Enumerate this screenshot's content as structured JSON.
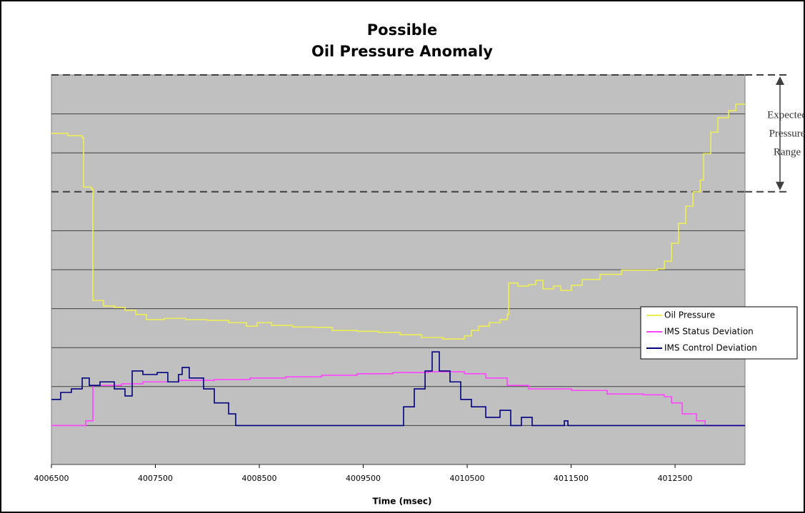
{
  "chart_data": {
    "type": "step",
    "title": [
      "Possible",
      "Oil Pressure Anomaly"
    ],
    "xlabel": "Time (msec)",
    "xlim": [
      4006500,
      4013173
    ],
    "xticks": [
      4006500,
      4007500,
      4008500,
      4009500,
      4010500,
      4011500,
      4012500
    ],
    "ylim": [
      0,
      10
    ],
    "yticks": [
      0,
      1,
      2,
      3,
      4,
      5,
      6,
      7,
      8,
      9,
      10
    ],
    "ytick_labels": false,
    "grid": true,
    "expected_range": [
      7,
      10
    ],
    "annotation": [
      "Expected",
      "Pressure",
      "Range"
    ],
    "legend": "right",
    "series": [
      {
        "name": "Oil Pressure",
        "color": "#eeee55",
        "x": [
          4006500,
          4006658,
          4006796,
          4006809,
          4006885,
          4006899,
          4007002,
          4007105,
          4007208,
          4007311,
          4007414,
          4007586,
          4007792,
          4007998,
          4008205,
          4008376,
          4008479,
          4008617,
          4008823,
          4009029,
          4009201,
          4009442,
          4009648,
          4009854,
          4010060,
          4010266,
          4010473,
          4010541,
          4010610,
          4010713,
          4010816,
          4010885,
          4010899,
          4010988,
          4011091,
          4011160,
          4011229,
          4011332,
          4011400,
          4011503,
          4011607,
          4011778,
          4011985,
          4012191,
          4012328,
          4012397,
          4012466,
          4012534,
          4012603,
          4012672,
          4012741,
          4012775,
          4012844,
          4012912,
          4013015,
          4013084,
          4013173
        ],
        "values": [
          8.5,
          8.44,
          8.39,
          7.12,
          7.07,
          4.21,
          4.07,
          4.03,
          3.96,
          3.85,
          3.72,
          3.75,
          3.72,
          3.7,
          3.64,
          3.55,
          3.64,
          3.57,
          3.53,
          3.52,
          3.44,
          3.42,
          3.39,
          3.33,
          3.26,
          3.22,
          3.3,
          3.44,
          3.55,
          3.64,
          3.72,
          3.85,
          4.66,
          4.58,
          4.62,
          4.73,
          4.51,
          4.58,
          4.47,
          4.6,
          4.75,
          4.88,
          4.99,
          4.99,
          5.02,
          5.22,
          5.68,
          6.19,
          6.63,
          7.0,
          7.3,
          7.98,
          8.53,
          8.9,
          9.08,
          9.25,
          9.25
        ]
      },
      {
        "name": "IMS Status Deviation",
        "color": "#ff44ff",
        "x": [
          4006500,
          4006796,
          4006830,
          4006899,
          4007036,
          4007174,
          4007380,
          4007723,
          4008067,
          4008411,
          4008754,
          4009098,
          4009442,
          4009785,
          4010129,
          4010473,
          4010679,
          4010885,
          4011091,
          4011366,
          4011503,
          4011847,
          4012191,
          4012397,
          4012466,
          4012569,
          4012706,
          4012789,
          4013173
        ],
        "values": [
          1.0,
          1.0,
          1.12,
          2.03,
          2.03,
          2.07,
          2.12,
          2.16,
          2.18,
          2.22,
          2.25,
          2.29,
          2.33,
          2.36,
          2.38,
          2.33,
          2.22,
          2.03,
          1.94,
          1.94,
          1.9,
          1.81,
          1.79,
          1.74,
          1.58,
          1.3,
          1.12,
          1.0,
          1.0
        ]
      },
      {
        "name": "IMS Control Deviation",
        "color": "#000080",
        "x": [
          4006500,
          4006589,
          4006692,
          4006796,
          4006864,
          4006967,
          4007105,
          4007208,
          4007277,
          4007380,
          4007517,
          4007620,
          4007723,
          4007758,
          4007826,
          4007964,
          4008067,
          4008205,
          4008273,
          4009820,
          4009888,
          4009991,
          4010095,
          4010163,
          4010232,
          4010335,
          4010438,
          4010541,
          4010679,
          4010816,
          4010919,
          4011022,
          4011125,
          4011435,
          4011469,
          4013173
        ],
        "values": [
          1.67,
          1.85,
          1.94,
          2.22,
          2.03,
          2.12,
          1.94,
          1.76,
          2.4,
          2.31,
          2.36,
          2.12,
          2.31,
          2.49,
          2.22,
          1.94,
          1.58,
          1.3,
          1.0,
          1.0,
          1.48,
          1.94,
          2.4,
          2.89,
          2.4,
          2.12,
          1.67,
          1.48,
          1.21,
          1.39,
          1.0,
          1.21,
          1.0,
          1.12,
          1.0,
          1.0
        ]
      }
    ]
  }
}
